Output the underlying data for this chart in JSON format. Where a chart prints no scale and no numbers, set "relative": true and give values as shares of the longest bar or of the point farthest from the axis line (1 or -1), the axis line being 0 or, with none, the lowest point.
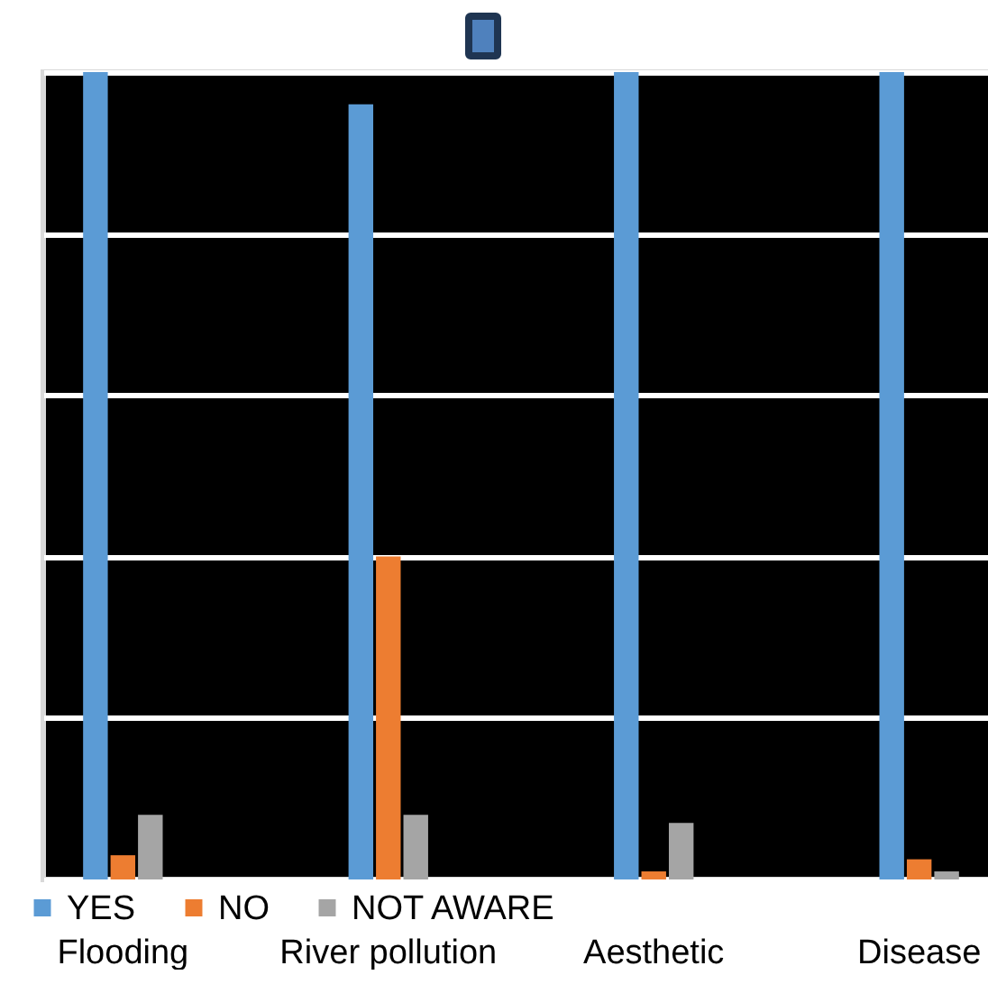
{
  "chart_data": {
    "type": "bar",
    "relative": true,
    "categories": [
      "Flooding",
      "River pollution",
      "Aesthetic",
      "Disease"
    ],
    "series": [
      {
        "name": "YES",
        "color": "#5b9bd5",
        "values": [
          1,
          0.96,
          1,
          1
        ]
      },
      {
        "name": "NO",
        "color": "#ed7d31",
        "values": [
          0.03,
          0.4,
          0.01,
          0.025
        ]
      },
      {
        "name": "NOT AWARE",
        "color": "#a5a5a5",
        "values": [
          0.08,
          0.08,
          0.07,
          0.01
        ]
      }
    ],
    "grid": "y",
    "legend": "bottom"
  }
}
